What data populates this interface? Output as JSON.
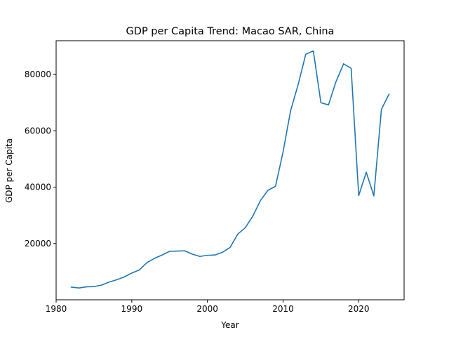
{
  "chart_data": {
    "type": "line",
    "title": "GDP per Capita Trend: Macao SAR, China",
    "xlabel": "Year",
    "ylabel": "GDP per Capita",
    "xlim": [
      1980,
      2026
    ],
    "ylim": [
      0,
      92000
    ],
    "xticks": [
      1980,
      1990,
      2000,
      2010,
      2020
    ],
    "yticks": [
      20000,
      40000,
      60000,
      80000
    ],
    "grid": false,
    "legend": "none",
    "series": [
      {
        "color": "#1f77b4",
        "x": [
          1982,
          1983,
          1984,
          1985,
          1986,
          1987,
          1988,
          1989,
          1990,
          1991,
          1992,
          1993,
          1994,
          1995,
          1996,
          1997,
          1998,
          1999,
          2000,
          2001,
          2002,
          2003,
          2004,
          2005,
          2006,
          2007,
          2008,
          2009,
          2010,
          2011,
          2012,
          2013,
          2014,
          2015,
          2016,
          2017,
          2018,
          2019,
          2020,
          2021,
          2022,
          2023,
          2024
        ],
        "values": [
          4500,
          4200,
          4600,
          4700,
          5200,
          6300,
          7100,
          8100,
          9500,
          10600,
          13200,
          14700,
          15900,
          17200,
          17300,
          17400,
          16200,
          15400,
          15800,
          15900,
          16900,
          18600,
          23300,
          25600,
          29700,
          35200,
          38900,
          40300,
          52500,
          67200,
          76500,
          87200,
          88400,
          70000,
          69200,
          77500,
          83800,
          82200,
          37000,
          45300,
          36900,
          67600,
          73000
        ]
      }
    ]
  }
}
